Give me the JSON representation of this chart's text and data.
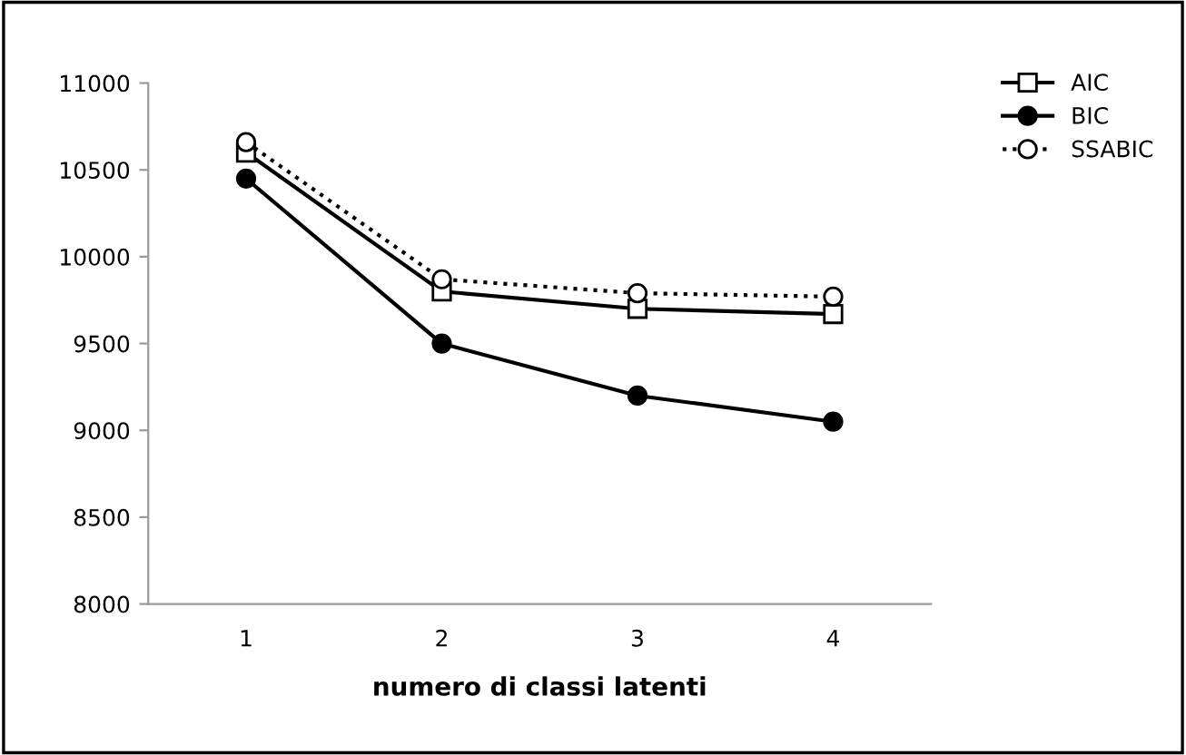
{
  "chart_data": {
    "type": "line",
    "xlabel": "numero di classi latenti",
    "categories": [
      "1",
      "2",
      "3",
      "4"
    ],
    "series": [
      {
        "name": "AIC",
        "color": "#000000",
        "values": [
          10600,
          9800,
          9700,
          9670
        ],
        "marker": "square",
        "line_style": "solid"
      },
      {
        "name": "BIC",
        "color": "#000000",
        "values": [
          10450,
          9500,
          9200,
          9050
        ],
        "marker": "circle",
        "line_style": "solid"
      },
      {
        "name": "SSABIC",
        "color": "#000000",
        "values": [
          10660,
          9870,
          9790,
          9770
        ],
        "marker": "circle",
        "line_style": "dotted"
      }
    ],
    "ylim": [
      8000,
      11000
    ],
    "yticks": [
      8000,
      8500,
      9000,
      9500,
      10000,
      10500,
      11000
    ],
    "grid": false,
    "legend": "top right"
  }
}
